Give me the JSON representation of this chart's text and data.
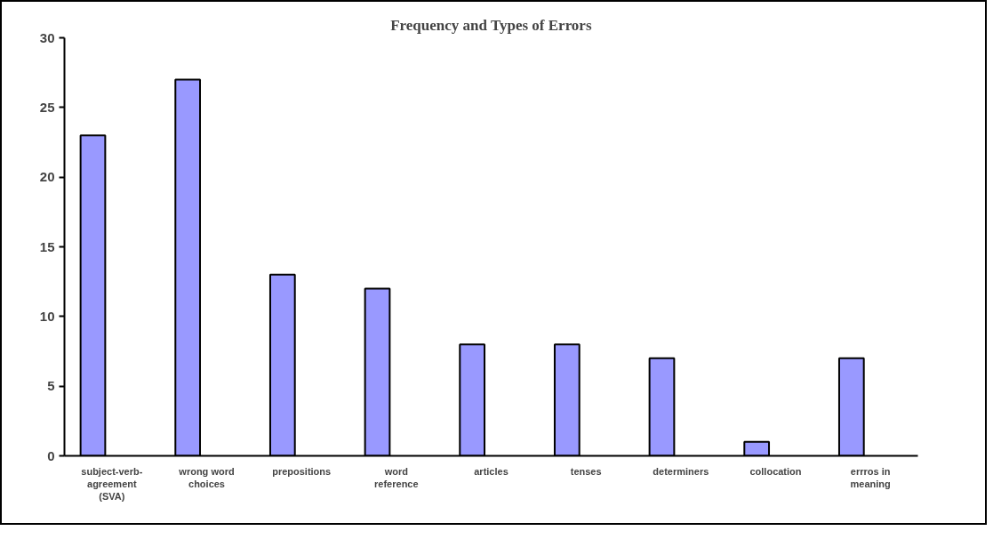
{
  "chart_data": {
    "type": "bar",
    "title": "Frequency and Types of Errors",
    "categories": [
      "subject-verb-agreement (SVA)",
      "wrong word choices",
      "prepositions",
      "word reference",
      "articles",
      "tenses",
      "determiners",
      "collocation",
      "errros in meaning"
    ],
    "values": [
      23,
      27,
      13,
      12,
      8,
      8,
      7,
      1,
      7
    ],
    "color": "#9999ff",
    "ylim": [
      0,
      30
    ],
    "yticks": [
      0,
      5,
      10,
      15,
      20,
      25,
      30
    ],
    "grid": false,
    "legend": false
  }
}
